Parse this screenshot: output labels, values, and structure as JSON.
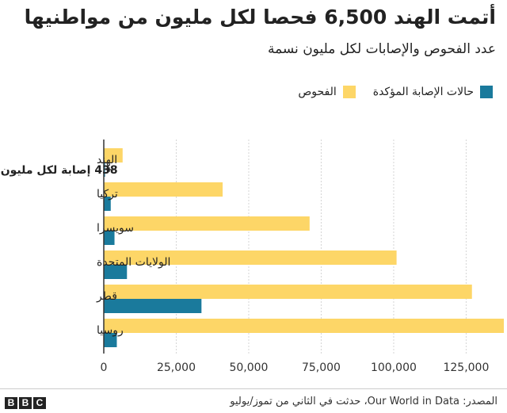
{
  "title": "أتمت الهند 6,500 فحصا لكل مليون من مواطنيها",
  "subtitle": "عدد الفحوص والإصابات لكل مليون نسمة",
  "legend": {
    "tests_label": "الفحوص",
    "cases_label": "حالات الإصابة المؤكدة"
  },
  "annotation": "438 إصابة لكل مليون",
  "source": "المصدر: Our World in Data، حدثت في الثاني من تموز/يوليو",
  "bbc_logo": [
    "B",
    "B",
    "C"
  ],
  "colors": {
    "tests": "#fdd667",
    "cases": "#1a7a9c",
    "grid": "#d5d5d5",
    "axis": "#333333"
  },
  "chart_data": {
    "type": "bar",
    "orientation": "horizontal",
    "categories": [
      "الهند",
      "تركيا",
      "سويسرا",
      "الولايات المتحدة",
      "قطر",
      "روسيا"
    ],
    "series": [
      {
        "name": "الفحوص",
        "values": [
          6500,
          41000,
          71000,
          101000,
          127000,
          138000
        ]
      },
      {
        "name": "حالات الإصابة المؤكدة",
        "values": [
          438,
          2400,
          3700,
          8000,
          33700,
          4500
        ]
      }
    ],
    "xlim": [
      0,
      138000
    ],
    "xticks": [
      0,
      25000,
      50000,
      75000,
      100000,
      125000
    ],
    "xtick_labels": [
      "0",
      "25,000",
      "50,000",
      "75,000",
      "100,000",
      "125,000"
    ],
    "grid": true,
    "legend_position": "top-right"
  }
}
